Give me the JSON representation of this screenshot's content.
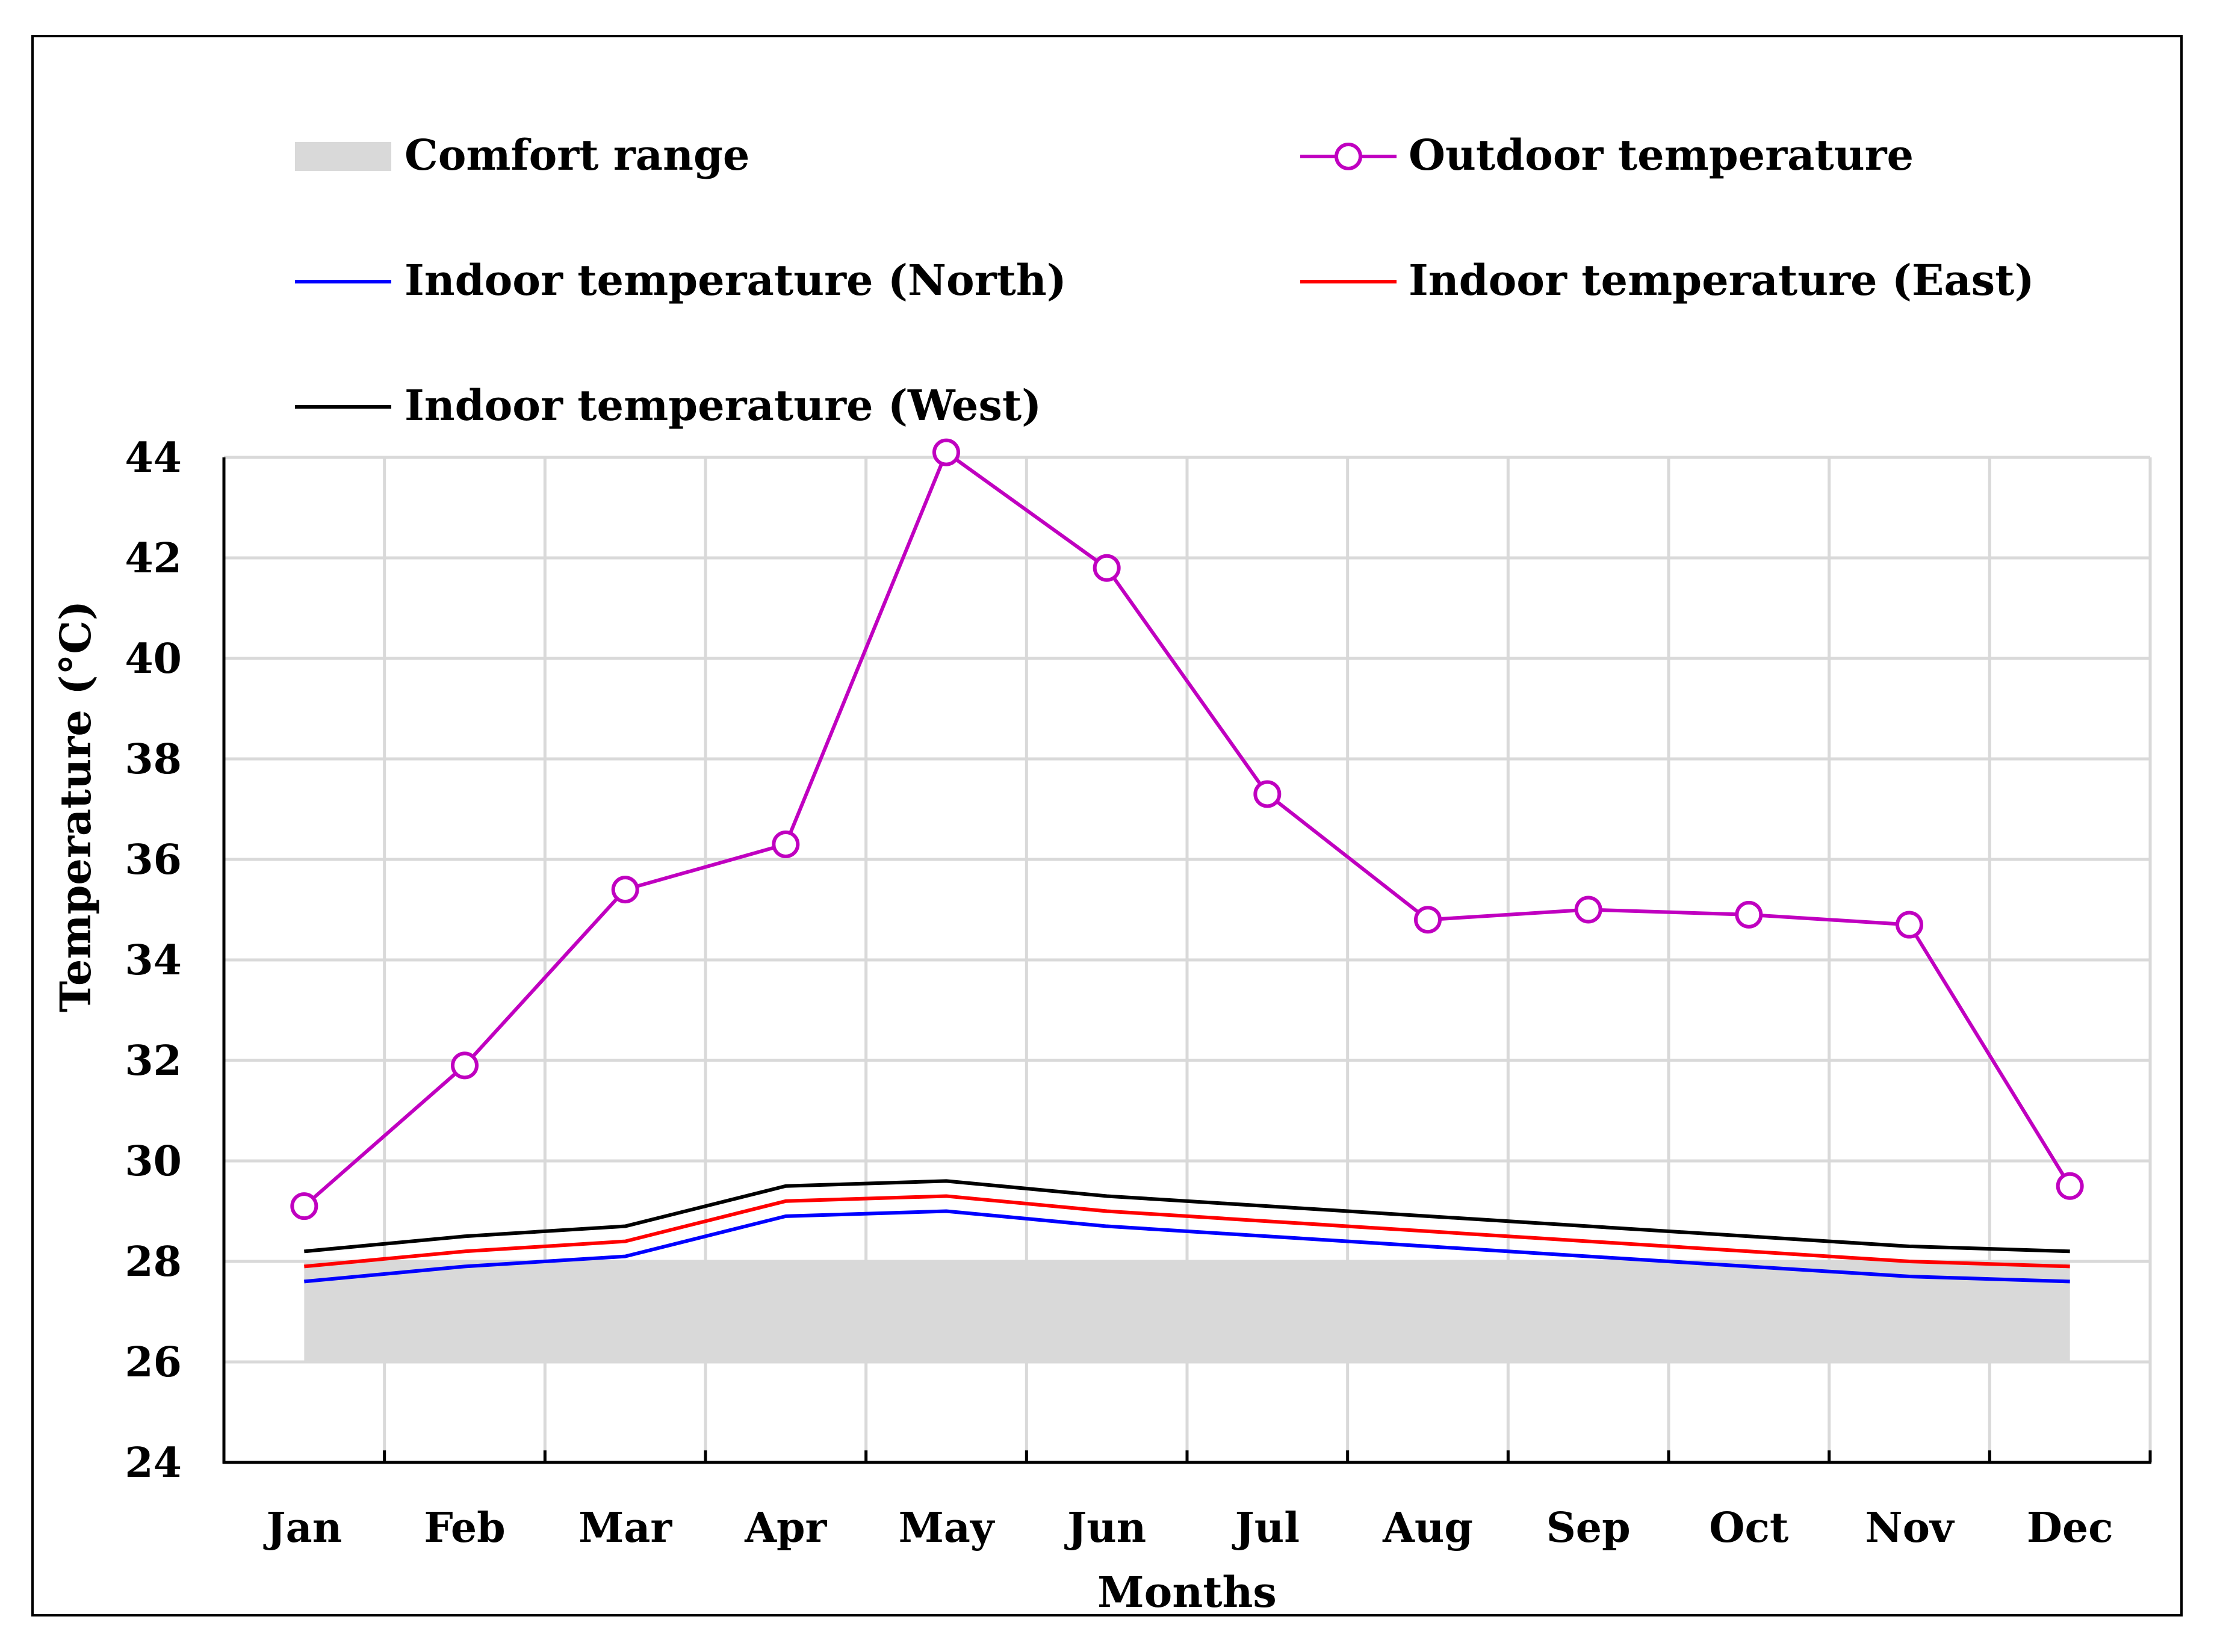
{
  "chart_data": {
    "type": "line",
    "title": "",
    "xlabel": "Months",
    "ylabel": "Temperature (°C)",
    "ylim": [
      24,
      44
    ],
    "yticks": [
      24,
      26,
      28,
      30,
      32,
      34,
      36,
      38,
      40,
      42,
      44
    ],
    "grid": true,
    "legend_position": "top",
    "categories": [
      "Jan",
      "Feb",
      "Mar",
      "Apr",
      "May",
      "Jun",
      "Jul",
      "Aug",
      "Sep",
      "Oct",
      "Nov",
      "Dec"
    ],
    "comfort_range": {
      "name": "Comfort range",
      "lower": 26,
      "upper": 28,
      "color": "#d9d9d9"
    },
    "series": [
      {
        "name": "Outdoor temperature",
        "color": "#c000c0",
        "marker": "circle",
        "values": [
          29.1,
          31.9,
          35.4,
          36.3,
          44.1,
          41.8,
          37.3,
          34.8,
          35.0,
          34.9,
          34.7,
          29.5
        ]
      },
      {
        "name": "Indoor temperature (North)",
        "color": "#0000ff",
        "marker": "none",
        "values": [
          27.6,
          27.9,
          28.1,
          28.9,
          29.0,
          28.7,
          28.5,
          28.3,
          28.1,
          27.9,
          27.7,
          27.6
        ]
      },
      {
        "name": "Indoor temperature (East)",
        "color": "#ff0000",
        "marker": "none",
        "values": [
          27.9,
          28.2,
          28.4,
          29.2,
          29.3,
          29.0,
          28.8,
          28.6,
          28.4,
          28.2,
          28.0,
          27.9
        ]
      },
      {
        "name": "Indoor temperature (West)",
        "color": "#000000",
        "marker": "none",
        "values": [
          28.2,
          28.5,
          28.7,
          29.5,
          29.6,
          29.3,
          29.1,
          28.9,
          28.7,
          28.5,
          28.3,
          28.2
        ]
      }
    ]
  }
}
